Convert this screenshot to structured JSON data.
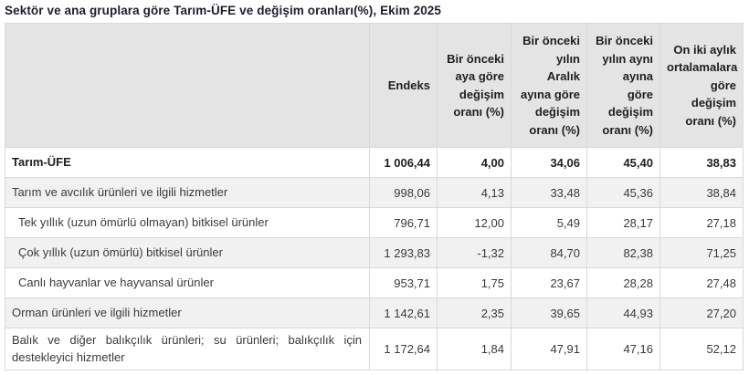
{
  "colors": {
    "page_bg": "#ffffff",
    "title_text": "#1d1d30",
    "header_bg": "#e4e4e4",
    "row_alt_bg": "#f1f1f1",
    "border": "#d9d9d9",
    "text": "#3a3a3a",
    "bold_text": "#1f1f1f"
  },
  "chart_data": {
    "type": "table",
    "title": "Sektör ve ana gruplara göre Tarım-ÜFE ve değişim oranları(%), Ekim 2025",
    "corner_label": "",
    "column_headers": [
      "Endeks",
      "Bir önceki\naya göre\ndeğişim\noranı (%)",
      "Bir önceki\nyılın\nAralık\nayına göre\ndeğişim\noranı (%)",
      "Bir önceki\nyılın aynı\nayına göre\ndeğişim\noranı (%)",
      "On iki aylık\nortalamalara\ngöre\ndeğişim\noranı (%)"
    ],
    "rows": [
      {
        "label": "Tarım-ÜFE",
        "bold": true,
        "indent": false,
        "values": [
          "1 006,44",
          "4,00",
          "34,06",
          "45,40",
          "38,83"
        ]
      },
      {
        "label": "Tarım ve avcılık ürünleri ve ilgili hizmetler",
        "bold": false,
        "indent": false,
        "values": [
          "998,06",
          "4,13",
          "33,48",
          "45,36",
          "38,84"
        ]
      },
      {
        "label": "Tek yıllık (uzun ömürlü olmayan) bitkisel ürünler",
        "bold": false,
        "indent": true,
        "values": [
          "796,71",
          "12,00",
          "5,49",
          "28,17",
          "27,18"
        ]
      },
      {
        "label": "Çok yıllık (uzun ömürlü) bitkisel ürünler",
        "bold": false,
        "indent": true,
        "values": [
          "1 293,83",
          "-1,32",
          "84,70",
          "82,38",
          "71,25"
        ]
      },
      {
        "label": "Canlı hayvanlar ve hayvansal ürünler",
        "bold": false,
        "indent": true,
        "values": [
          "953,71",
          "1,75",
          "23,67",
          "28,28",
          "27,48"
        ]
      },
      {
        "label": "Orman ürünleri ve ilgili hizmetler",
        "bold": false,
        "indent": false,
        "values": [
          "1 142,61",
          "2,35",
          "39,65",
          "44,93",
          "27,20"
        ]
      },
      {
        "label": "Balık ve diğer balıkçılık ürünleri; su ürünleri; balıkçılık için destekleyici hizmetler",
        "bold": false,
        "indent": false,
        "values": [
          "1 172,64",
          "1,84",
          "47,91",
          "47,16",
          "52,12"
        ]
      }
    ]
  }
}
